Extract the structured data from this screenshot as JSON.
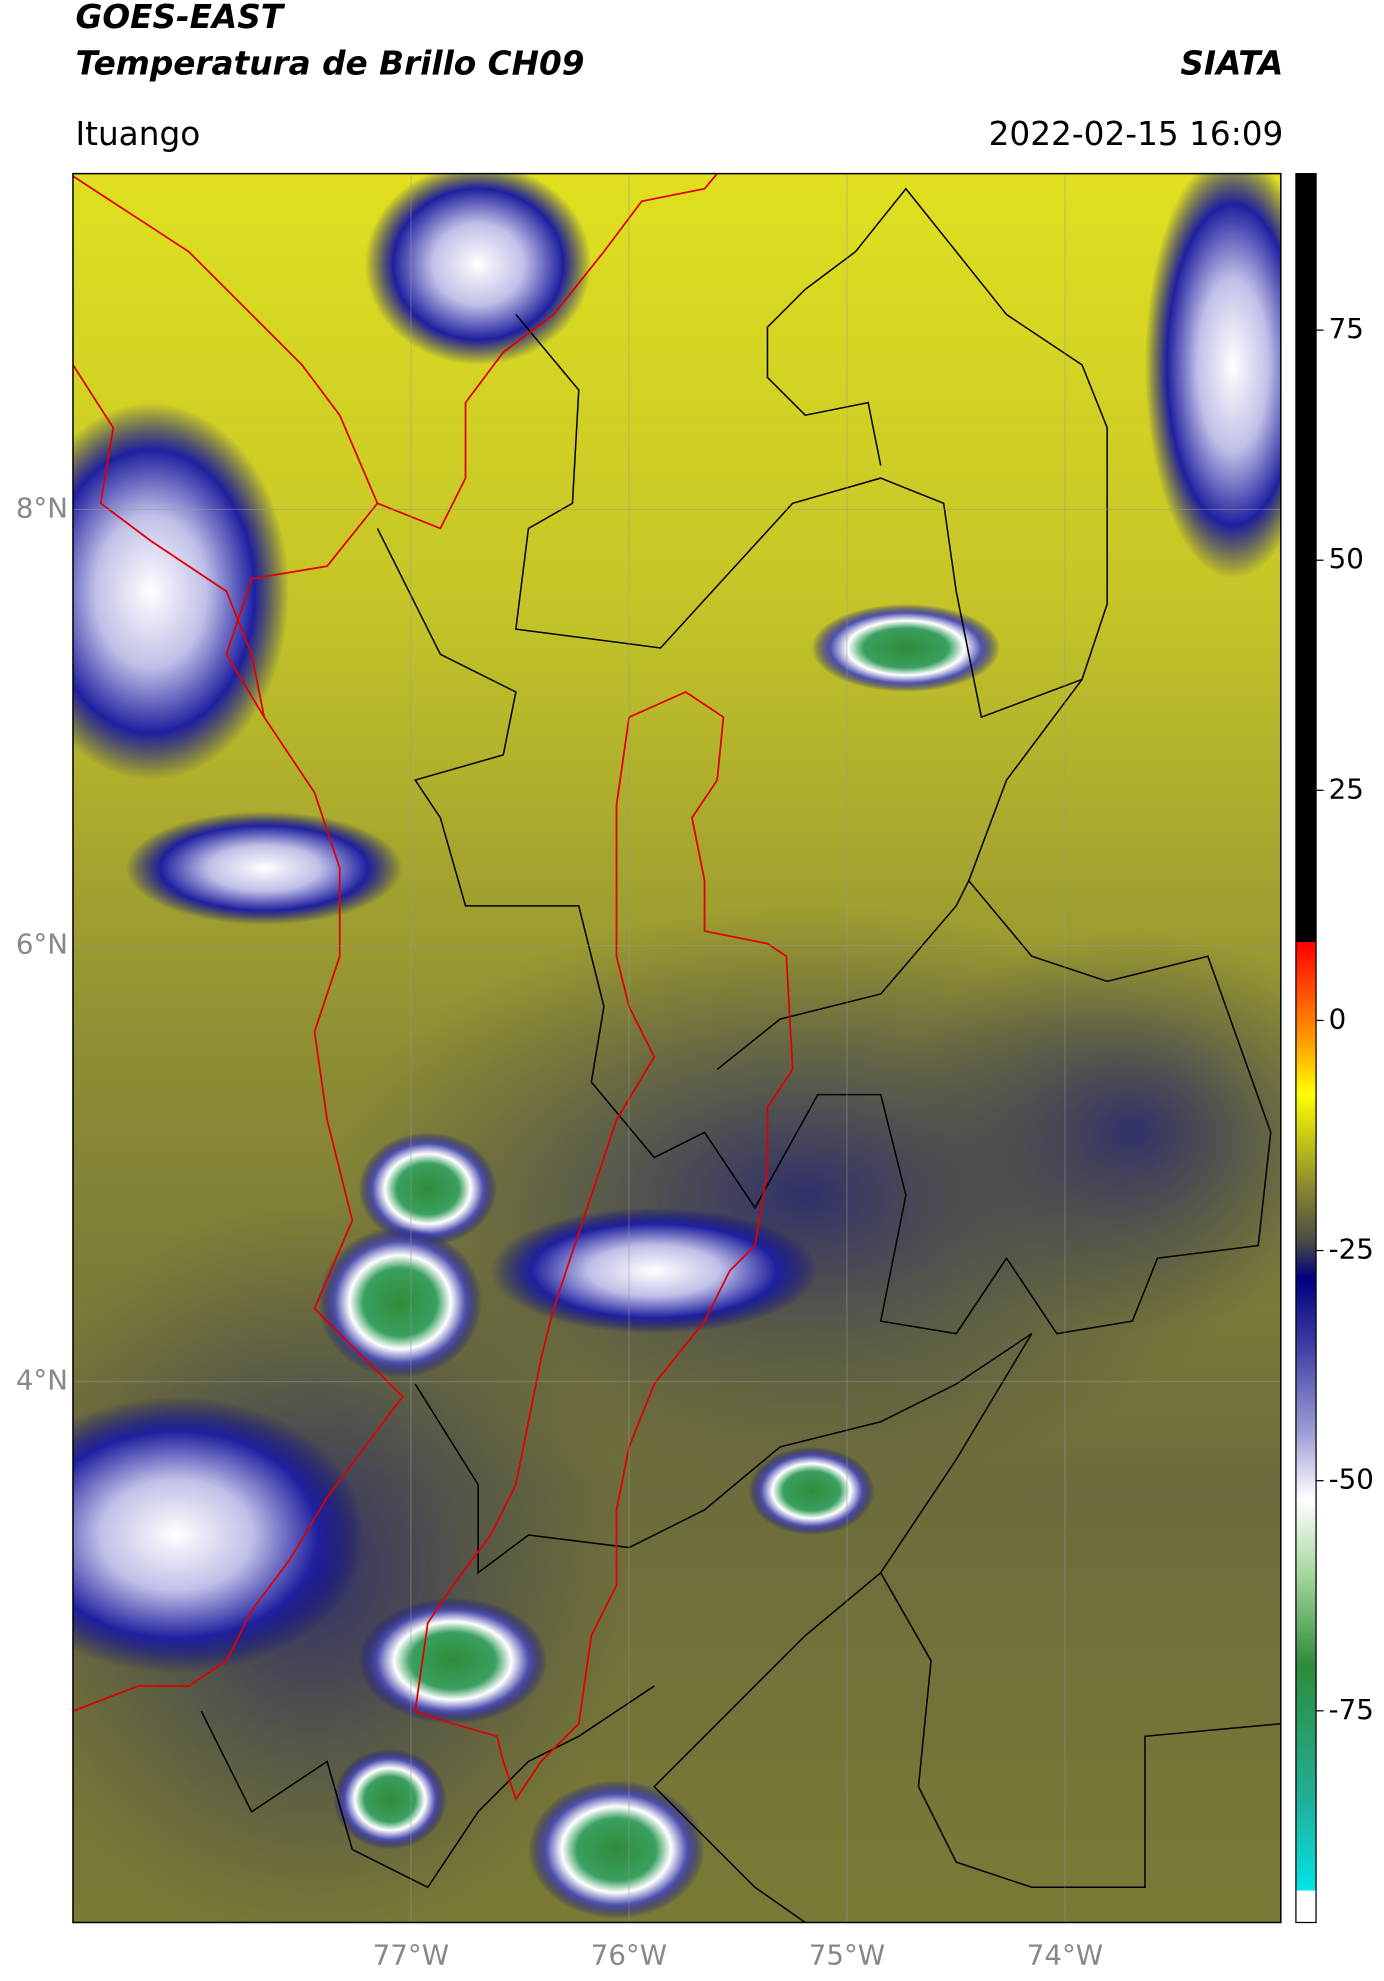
{
  "header": {
    "title": "GOES-EAST",
    "subtitle": "Temperatura de Brillo CH09",
    "source": "SIATA",
    "region": "Ituango",
    "datetime": "2022-02-15 16:09"
  },
  "chart_data": {
    "type": "map",
    "xlim": [
      -78.55,
      -73.01
    ],
    "ylim": [
      1.52,
      9.54
    ],
    "xticks": [
      {
        "value": -77,
        "label": "77°W"
      },
      {
        "value": -76,
        "label": "76°W"
      },
      {
        "value": -75,
        "label": "75°W"
      },
      {
        "value": -74,
        "label": "74°W"
      }
    ],
    "yticks": [
      {
        "value": 8,
        "label": "8°N"
      },
      {
        "value": 6,
        "label": "6°N"
      },
      {
        "value": 4,
        "label": "4°N"
      }
    ],
    "grid": true,
    "colorbar": {
      "lim": [
        -98,
        92
      ],
      "ticks": [
        75,
        50,
        25,
        0,
        -25,
        -50,
        -75
      ],
      "colormap": [
        {
          "value": -98,
          "color": "#ffffff"
        },
        {
          "value": -94.5,
          "color": "#ffffff"
        },
        {
          "value": -94.5,
          "color": "#00e5e5"
        },
        {
          "value": -85,
          "color": "#20b09a"
        },
        {
          "value": -70,
          "color": "#2e8b3a"
        },
        {
          "value": -60,
          "color": "#a8d8a0"
        },
        {
          "value": -52,
          "color": "#ffffff"
        },
        {
          "value": -45,
          "color": "#a0a0d8"
        },
        {
          "value": -35,
          "color": "#3a3aa0"
        },
        {
          "value": -28,
          "color": "#000080"
        },
        {
          "value": -24,
          "color": "#4a4a44"
        },
        {
          "value": -18,
          "color": "#8a8a30"
        },
        {
          "value": -8,
          "color": "#ffff00"
        },
        {
          "value": -2,
          "color": "#ff9900"
        },
        {
          "value": 8.5,
          "color": "#ff0000"
        },
        {
          "value": 8.5,
          "color": "#000000"
        },
        {
          "value": 92,
          "color": "#000000"
        }
      ]
    }
  }
}
